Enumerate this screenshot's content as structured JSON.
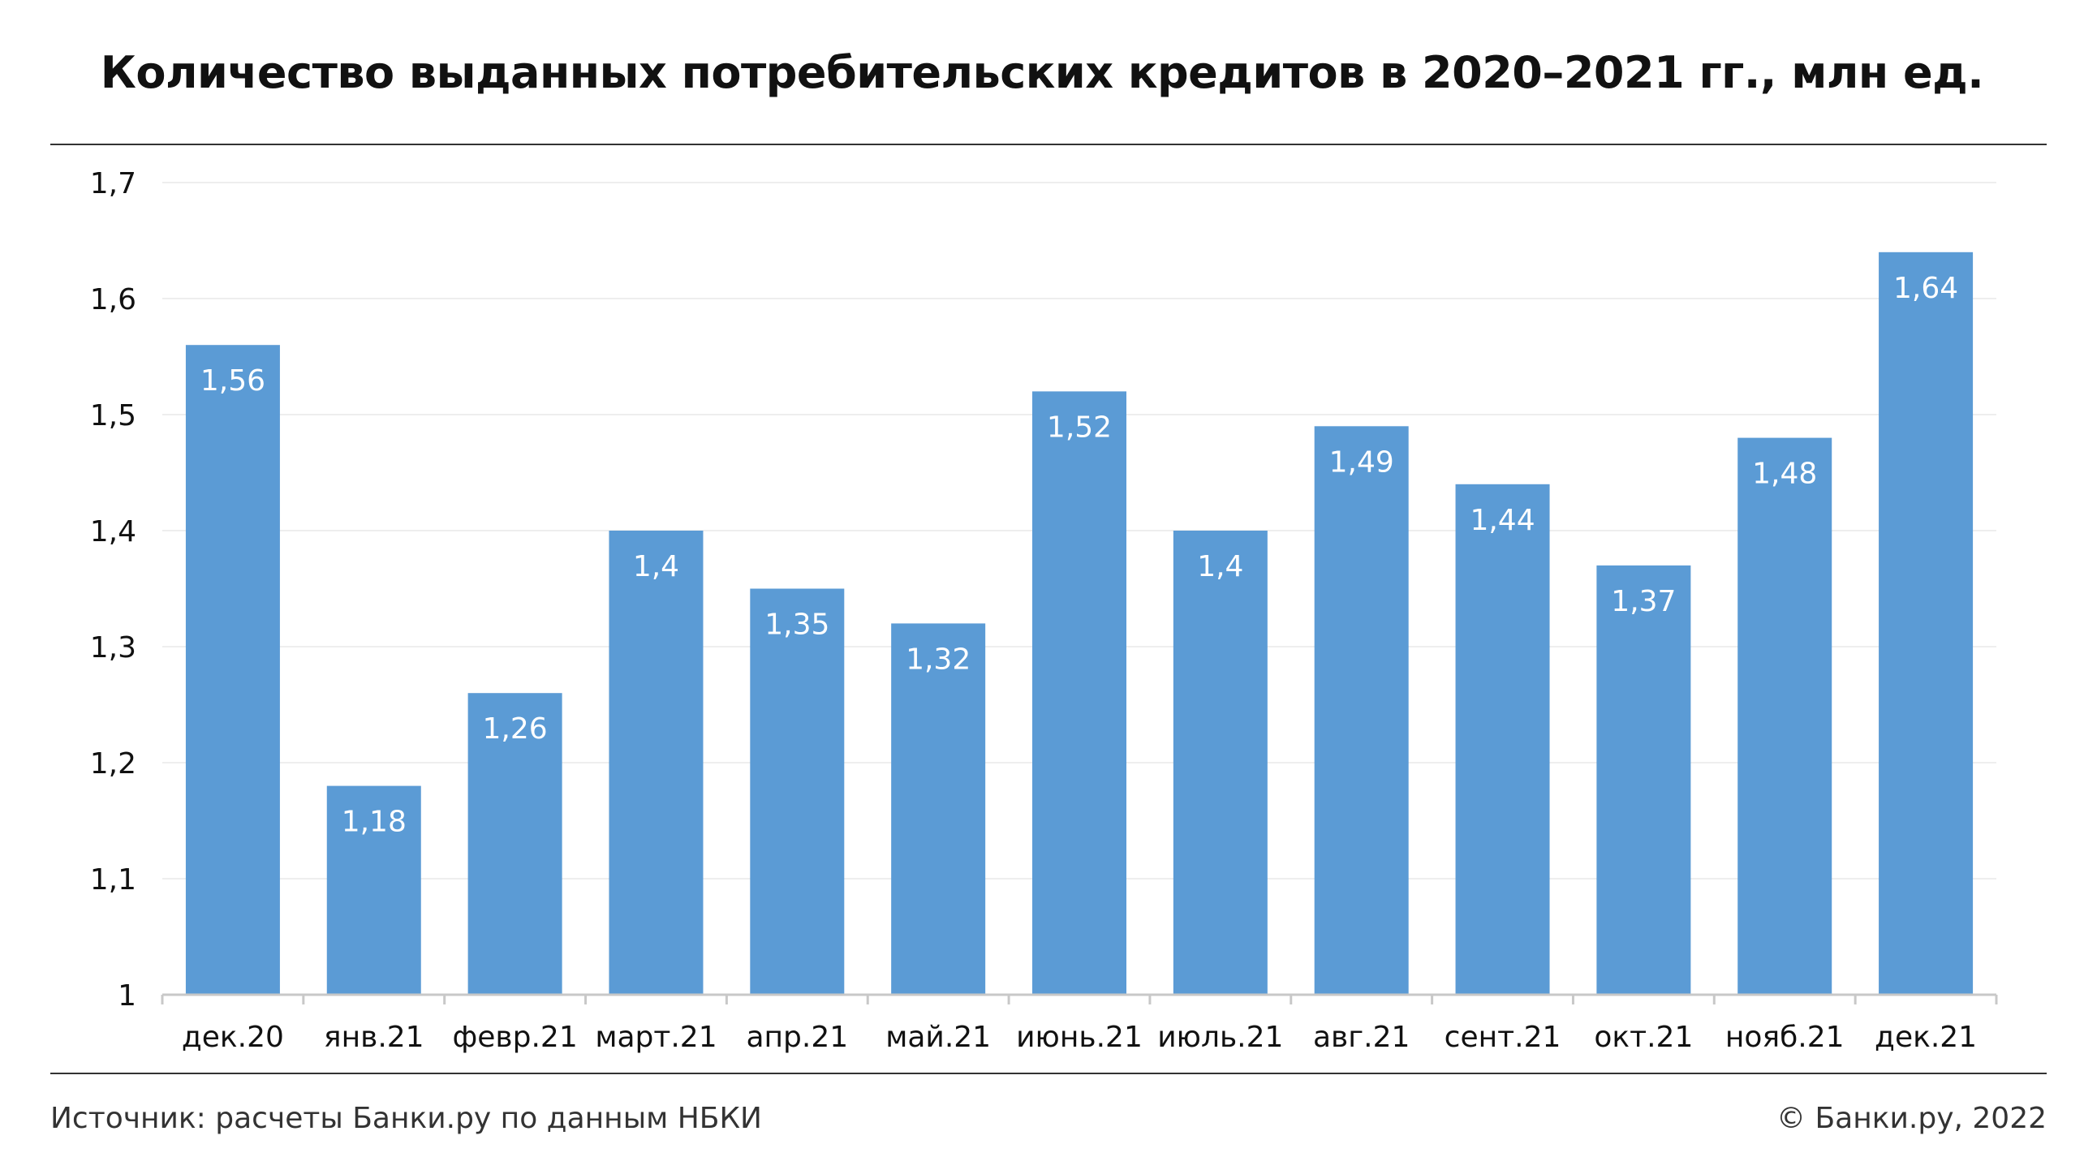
{
  "header": {
    "title": "Количество выданных потребительских кредитов в 2020–2021 гг., млн ед."
  },
  "footer": {
    "source": "Источник: расчеты Банки.ру по данным НБКИ",
    "copyright": "© Банки.ру, 2022"
  },
  "colors": {
    "bar": "#5b9bd5",
    "bar_label": "#ffffff",
    "grid": "#eeeeee",
    "axis": "#c8c8c8",
    "text": "#111111"
  },
  "chart_data": {
    "type": "bar",
    "title": "Количество выданных потребительских кредитов в 2020–2021 гг., млн ед.",
    "xlabel": "",
    "ylabel": "",
    "categories": [
      "дек.20",
      "янв.21",
      "февр.21",
      "март.21",
      "апр.21",
      "май.21",
      "июнь.21",
      "июль.21",
      "авг.21",
      "сент.21",
      "окт.21",
      "нояб.21",
      "дек.21"
    ],
    "values": [
      1.56,
      1.18,
      1.26,
      1.4,
      1.35,
      1.32,
      1.52,
      1.4,
      1.49,
      1.44,
      1.37,
      1.48,
      1.64
    ],
    "value_labels": [
      "1,56",
      "1,18",
      "1,26",
      "1,4",
      "1,35",
      "1,32",
      "1,52",
      "1,4",
      "1,49",
      "1,44",
      "1,37",
      "1,48",
      "1,64"
    ],
    "ylim": [
      1,
      1.7
    ],
    "y_ticks": [
      1,
      1.1,
      1.2,
      1.3,
      1.4,
      1.5,
      1.6,
      1.7
    ],
    "y_tick_labels": [
      "1",
      "1,1",
      "1,2",
      "1,3",
      "1,4",
      "1,5",
      "1,6",
      "1,7"
    ],
    "grid": true,
    "legend": "none"
  }
}
